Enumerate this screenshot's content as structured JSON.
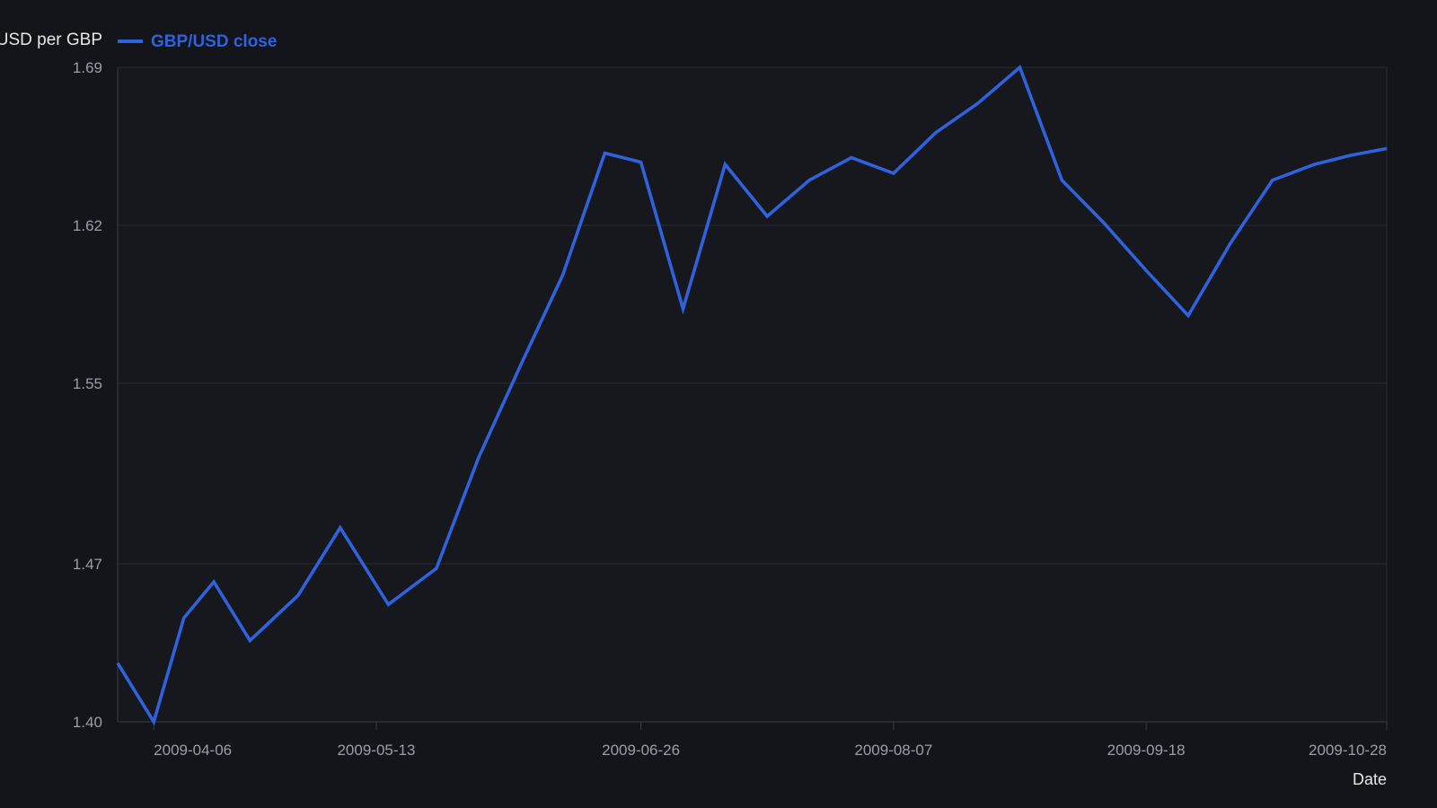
{
  "chart_data": {
    "type": "line",
    "ylabel": "USD per GBP",
    "xlabel": "Date",
    "legend_position": "top-left",
    "grid": true,
    "colors": {
      "background": "#13151b",
      "series": "#2f62dd",
      "grid": "#2a2d33",
      "axis": "#3a3d44",
      "tick_label": "#9a9ea6"
    },
    "ylim": [
      1.4,
      1.69
    ],
    "yticks": [
      "1.40",
      "1.47",
      "1.55",
      "1.62",
      "1.69"
    ],
    "xlim": [
      "2009-03-31",
      "2009-10-28"
    ],
    "xticks": [
      "2009-04-06",
      "2009-05-13",
      "2009-06-26",
      "2009-08-07",
      "2009-09-18",
      "2009-10-28"
    ],
    "series": [
      {
        "name": "GBP/USD close",
        "points": [
          [
            "2009-03-31",
            1.426
          ],
          [
            "2009-04-06",
            1.4
          ],
          [
            "2009-04-11",
            1.446
          ],
          [
            "2009-04-16",
            1.462
          ],
          [
            "2009-04-22",
            1.436
          ],
          [
            "2009-04-30",
            1.456
          ],
          [
            "2009-05-07",
            1.486
          ],
          [
            "2009-05-15",
            1.452
          ],
          [
            "2009-05-23",
            1.468
          ],
          [
            "2009-05-30",
            1.517
          ],
          [
            "2009-06-06",
            1.558
          ],
          [
            "2009-06-13",
            1.598
          ],
          [
            "2009-06-20",
            1.652
          ],
          [
            "2009-06-26",
            1.648
          ],
          [
            "2009-07-03",
            1.583
          ],
          [
            "2009-07-10",
            1.647
          ],
          [
            "2009-07-17",
            1.624
          ],
          [
            "2009-07-24",
            1.64
          ],
          [
            "2009-07-31",
            1.65
          ],
          [
            "2009-08-07",
            1.643
          ],
          [
            "2009-08-14",
            1.661
          ],
          [
            "2009-08-21",
            1.674
          ],
          [
            "2009-08-28",
            1.69
          ],
          [
            "2009-09-04",
            1.64
          ],
          [
            "2009-09-11",
            1.621
          ],
          [
            "2009-09-18",
            1.6
          ],
          [
            "2009-09-25",
            1.58
          ],
          [
            "2009-10-02",
            1.612
          ],
          [
            "2009-10-09",
            1.64
          ],
          [
            "2009-10-16",
            1.647
          ],
          [
            "2009-10-22",
            1.651
          ],
          [
            "2009-10-28",
            1.654
          ]
        ]
      }
    ]
  }
}
